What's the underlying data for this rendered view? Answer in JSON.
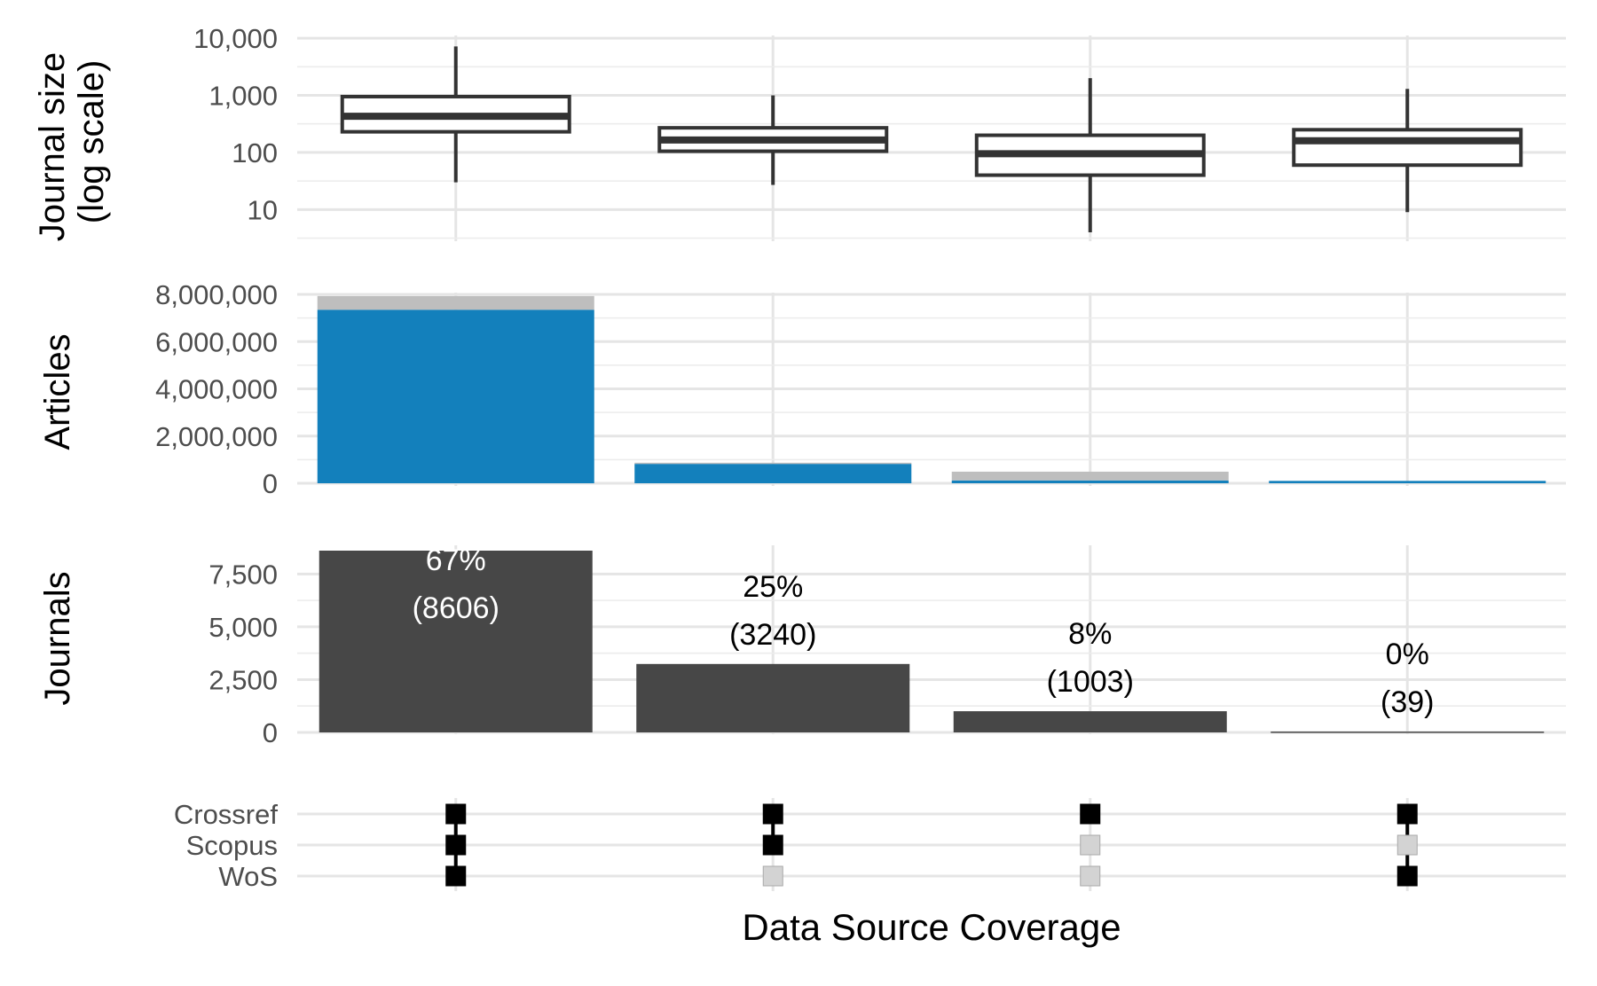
{
  "chart_data": [
    {
      "panel": "journal-size",
      "type": "box",
      "ylabel_lines": [
        "Journal size",
        "(log scale)"
      ],
      "scale": "log10",
      "yticks": [
        10,
        100,
        1000,
        10000
      ],
      "ytick_labels": [
        "10",
        "100",
        "1,000",
        "10,000"
      ],
      "ylim": [
        3,
        16000
      ],
      "grid": true,
      "boxes": [
        {
          "min": 30,
          "q1": 230,
          "median": 430,
          "q3": 950,
          "max": 7200
        },
        {
          "min": 27,
          "q1": 105,
          "median": 165,
          "q3": 270,
          "max": 1000
        },
        {
          "min": 4,
          "q1": 40,
          "median": 95,
          "q3": 200,
          "max": 2000
        },
        {
          "min": 9,
          "q1": 60,
          "median": 160,
          "q3": 250,
          "max": 1300
        }
      ]
    },
    {
      "panel": "articles",
      "type": "bar",
      "stacked": true,
      "ylabel": "Articles",
      "yticks": [
        0,
        2000000,
        4000000,
        6000000,
        8000000
      ],
      "ytick_labels": [
        "0",
        "2,000,000",
        "4,000,000",
        "6,000,000",
        "8,000,000"
      ],
      "ylim": [
        0,
        8000000
      ],
      "grid": true,
      "series": [
        {
          "values": [
            7350000,
            820000,
            120000,
            100000
          ],
          "color": "#1380BC"
        },
        {
          "values": [
            580000,
            50000,
            370000,
            0
          ],
          "color": "#BEBEBE"
        }
      ]
    },
    {
      "panel": "journals",
      "type": "bar",
      "ylabel": "Journals",
      "yticks": [
        0,
        2500,
        5000,
        7500
      ],
      "ytick_labels": [
        "0",
        "2,500",
        "5,000",
        "7,500"
      ],
      "ylim": [
        0,
        8606
      ],
      "grid": true,
      "color": "#474747",
      "values": [
        8606,
        3240,
        1003,
        39
      ],
      "labels": [
        {
          "pct": "67%",
          "count": "(8606)"
        },
        {
          "pct": "25%",
          "count": "(3240)"
        },
        {
          "pct": "8%",
          "count": "(1003)"
        },
        {
          "pct": "0%",
          "count": "(39)"
        }
      ]
    },
    {
      "panel": "coverage-matrix",
      "type": "table",
      "rows": [
        "Crossref",
        "Scopus",
        "WoS"
      ],
      "xlabel": "Data Source Coverage",
      "active_color": "#000000",
      "inactive_color": "#D3D3D3",
      "columns": [
        [
          true,
          true,
          true
        ],
        [
          true,
          true,
          false
        ],
        [
          true,
          false,
          false
        ],
        [
          true,
          false,
          true
        ]
      ]
    }
  ]
}
